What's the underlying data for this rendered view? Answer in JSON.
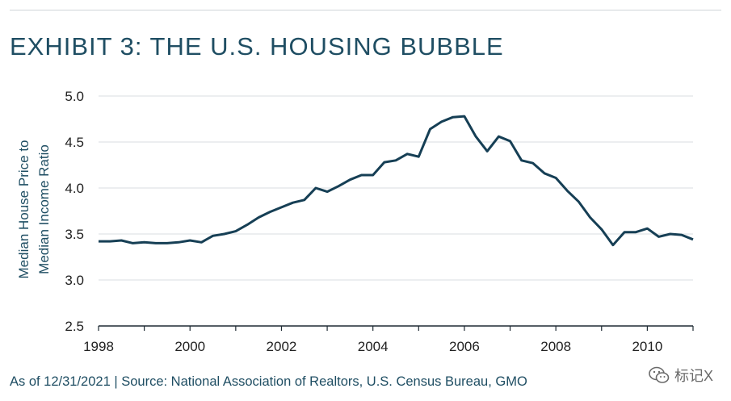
{
  "title": "EXHIBIT 3: THE U.S. HOUSING BUBBLE",
  "footer": "As of 12/31/2021 | Source: National Association of Realtors, U.S. Census Bureau, GMO",
  "watermark": {
    "text": "标记X",
    "icon": "wechat-icon"
  },
  "colors": {
    "line": "#163f55",
    "title": "#1f4e63",
    "grid": "#d9dde0",
    "axis": "#1e2a33"
  },
  "chart_data": {
    "type": "line",
    "title": "EXHIBIT 3: THE U.S. HOUSING BUBBLE",
    "ylabel": [
      "Median House Price to",
      "Median Income Ratio"
    ],
    "xlabel": "",
    "xlim": [
      1998,
      2011
    ],
    "ylim": [
      2.5,
      5.0
    ],
    "yticks": [
      "5.0",
      "4.5",
      "4.0",
      "3.5",
      "3.0",
      "2.5"
    ],
    "xticks": [
      "1998",
      "2000",
      "2002",
      "2004",
      "2006",
      "2008",
      "2010"
    ],
    "grid": "horizontal",
    "series": [
      {
        "x": [
          1998.0,
          1998.25,
          1998.5,
          1998.75,
          1999.0,
          1999.25,
          1999.5,
          1999.75,
          2000.0,
          2000.25,
          2000.5,
          2000.75,
          2001.0,
          2001.25,
          2001.5,
          2001.75,
          2002.0,
          2002.25,
          2002.5,
          2002.75,
          2003.0,
          2003.25,
          2003.5,
          2003.75,
          2004.0,
          2004.25,
          2004.5,
          2004.75,
          2005.0,
          2005.25,
          2005.5,
          2005.75,
          2006.0,
          2006.25,
          2006.5,
          2006.75,
          2007.0,
          2007.25,
          2007.5,
          2007.75,
          2008.0,
          2008.25,
          2008.5,
          2008.75,
          2009.0,
          2009.25,
          2009.5,
          2009.75,
          2010.0,
          2010.25,
          2010.5,
          2010.75,
          2011.0
        ],
        "y": [
          3.42,
          3.42,
          3.43,
          3.4,
          3.41,
          3.4,
          3.4,
          3.41,
          3.43,
          3.41,
          3.48,
          3.5,
          3.53,
          3.6,
          3.68,
          3.74,
          3.79,
          3.84,
          3.87,
          4.0,
          3.96,
          4.02,
          4.09,
          4.14,
          4.14,
          4.28,
          4.3,
          4.37,
          4.34,
          4.64,
          4.72,
          4.77,
          4.78,
          4.56,
          4.4,
          4.56,
          4.51,
          4.3,
          4.27,
          4.16,
          4.11,
          3.97,
          3.85,
          3.68,
          3.55,
          3.38,
          3.52,
          3.52,
          3.56,
          3.47,
          3.5,
          3.49,
          3.44
        ]
      }
    ]
  }
}
